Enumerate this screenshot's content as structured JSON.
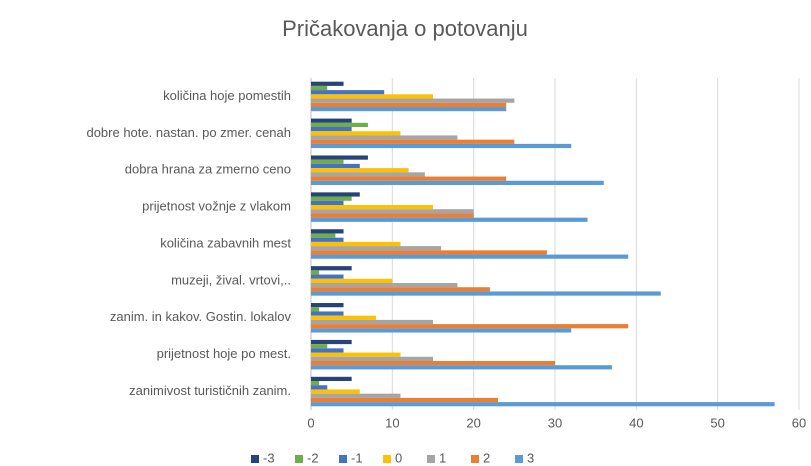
{
  "chart_data": {
    "type": "barh",
    "title": "Pričakovanja o potovanju",
    "categories": [
      "količina hoje pomestih",
      "dobre hote. nastan. po zmer. cenah",
      "dobra hrana za zmerno ceno",
      "prijetnost vožnje z vlakom",
      "količina zabavnih mest",
      "muzeji, žival. vrtovi,..",
      "zanim. in kakov. Gostin. lokalov",
      "prijetnost hoje po mest.",
      "zanimivost turističnih zanim."
    ],
    "series": [
      {
        "name": "-3",
        "color": "#264478",
        "values": [
          4,
          5,
          7,
          6,
          4,
          5,
          4,
          5,
          5
        ]
      },
      {
        "name": "-2",
        "color": "#70ad47",
        "values": [
          2,
          7,
          4,
          5,
          3,
          1,
          1,
          2,
          1
        ]
      },
      {
        "name": "-1",
        "color": "#4472c4",
        "values": [
          9,
          5,
          6,
          4,
          4,
          4,
          4,
          4,
          2
        ]
      },
      {
        "name": "0",
        "color": "#ffc000",
        "values": [
          15,
          11,
          12,
          15,
          11,
          10,
          8,
          11,
          6
        ]
      },
      {
        "name": "1",
        "color": "#a5a5a5",
        "values": [
          25,
          18,
          14,
          20,
          16,
          18,
          15,
          15,
          11
        ]
      },
      {
        "name": "2",
        "color": "#ed7d31",
        "values": [
          24,
          25,
          24,
          20,
          29,
          22,
          39,
          30,
          23
        ]
      },
      {
        "name": "3",
        "color": "#5b9bd5",
        "values": [
          24,
          32,
          36,
          34,
          39,
          43,
          32,
          37,
          57
        ]
      }
    ],
    "xlim": [
      0,
      60
    ],
    "xticks": [
      0,
      10,
      20,
      30,
      40,
      50,
      60
    ],
    "grid": true,
    "legend": "bottom"
  }
}
